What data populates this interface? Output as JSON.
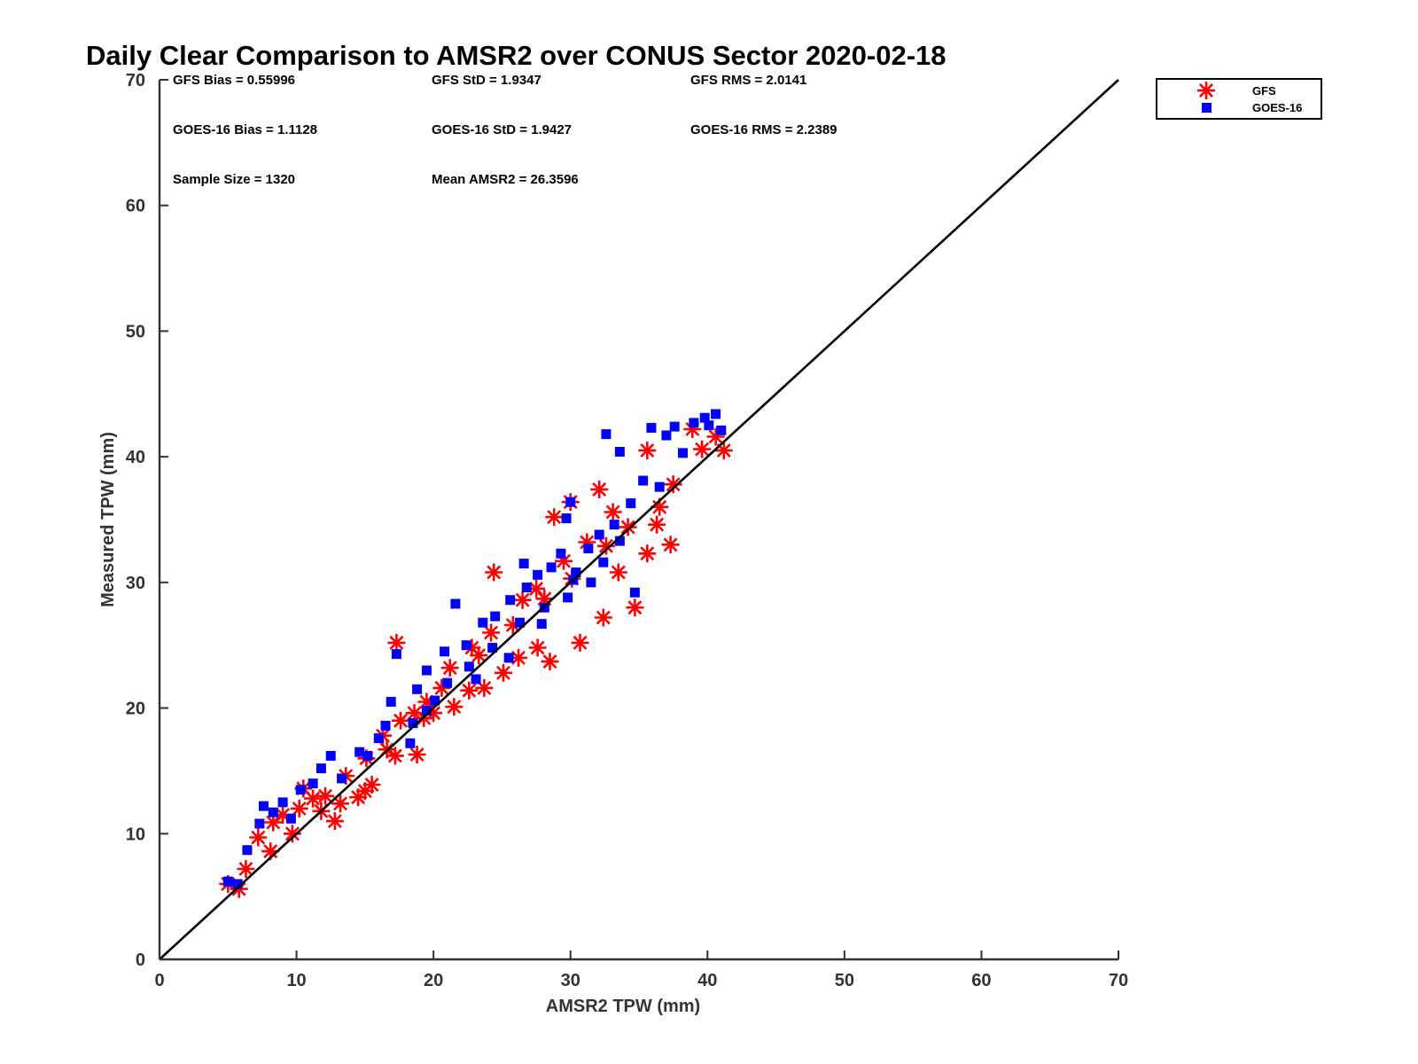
{
  "chart_data": {
    "type": "scatter",
    "title": "Daily Clear Comparison to AMSR2 over CONUS Sector 2020-02-18",
    "xlabel": "AMSR2 TPW (mm)",
    "ylabel": "Measured TPW (mm)",
    "xlim": [
      0,
      70
    ],
    "ylim": [
      0,
      70
    ],
    "xticks": [
      "0",
      "10",
      "20",
      "30",
      "40",
      "50",
      "60",
      "70"
    ],
    "yticks": [
      "0",
      "10",
      "20",
      "30",
      "40",
      "50",
      "60",
      "70"
    ],
    "grid": false,
    "legend_position": "top-right, outside plot",
    "reference_line": {
      "x": [
        0,
        70
      ],
      "y": [
        0,
        70
      ]
    },
    "stats": [
      [
        "GFS Bias = 0.55996",
        "GFS StD = 1.9347",
        "GFS RMS = 2.0141"
      ],
      [
        "GOES-16 Bias = 1.1128",
        "GOES-16 StD = 1.9427",
        "GOES-16 RMS = 2.2389"
      ],
      [
        "Sample Size = 1320",
        "Mean AMSR2 = 26.3596",
        ""
      ]
    ],
    "series": [
      {
        "name": "GFS",
        "marker": "asterisk",
        "color": "#ff0000",
        "points": [
          [
            5,
            6
          ],
          [
            5.8,
            5.6
          ],
          [
            6.3,
            7.2
          ],
          [
            7.2,
            9.7
          ],
          [
            8.1,
            8.6
          ],
          [
            8.3,
            10.9
          ],
          [
            9.7,
            10
          ],
          [
            10.2,
            12
          ],
          [
            10.5,
            13.6
          ],
          [
            11.2,
            12.8
          ],
          [
            12.1,
            13
          ],
          [
            12.8,
            11
          ],
          [
            13.2,
            12.4
          ],
          [
            13.6,
            14.6
          ],
          [
            14.5,
            12.9
          ],
          [
            15,
            13.4
          ],
          [
            15.5,
            13.9
          ],
          [
            16.6,
            16.7
          ],
          [
            17.2,
            16.2
          ],
          [
            17.6,
            19
          ],
          [
            18.8,
            16.3
          ],
          [
            17.3,
            25.2
          ],
          [
            19.3,
            19.2
          ],
          [
            20,
            19.6
          ],
          [
            21.5,
            20.1
          ],
          [
            22.6,
            21.4
          ],
          [
            23.7,
            21.6
          ],
          [
            25.1,
            22.8
          ],
          [
            26.2,
            24
          ],
          [
            27.6,
            24.8
          ],
          [
            28.5,
            23.7
          ],
          [
            30.7,
            25.2
          ],
          [
            32.4,
            27.2
          ],
          [
            33.5,
            30.8
          ],
          [
            34.7,
            28
          ],
          [
            35.6,
            32.3
          ],
          [
            36.3,
            34.6
          ],
          [
            37.3,
            33
          ],
          [
            37.5,
            37.8
          ],
          [
            38.9,
            42.2
          ],
          [
            39.6,
            40.6
          ],
          [
            40.6,
            41.6
          ],
          [
            41.2,
            40.5
          ],
          [
            24.4,
            30.8
          ],
          [
            28.8,
            35.2
          ],
          [
            30,
            36.4
          ],
          [
            32.1,
            37.4
          ],
          [
            35.6,
            40.5
          ],
          [
            26.5,
            28.6
          ],
          [
            27.5,
            29.5
          ],
          [
            29.5,
            31.7
          ],
          [
            31.2,
            33.2
          ],
          [
            33.1,
            35.6
          ],
          [
            21.2,
            23.2
          ],
          [
            22.8,
            24.8
          ],
          [
            24.2,
            26
          ],
          [
            20.6,
            21.6
          ],
          [
            23.3,
            24.2
          ],
          [
            25.8,
            26.6
          ],
          [
            28.1,
            28.7
          ],
          [
            30.1,
            30.3
          ],
          [
            32.6,
            32.9
          ],
          [
            34.2,
            34.4
          ],
          [
            36.5,
            36
          ],
          [
            19.5,
            20.5
          ],
          [
            18.6,
            19.6
          ],
          [
            16.3,
            17.8
          ],
          [
            15.1,
            16
          ],
          [
            11.8,
            11.8
          ],
          [
            9,
            11.5
          ]
        ]
      },
      {
        "name": "GOES-16",
        "marker": "square",
        "color": "#0000ff",
        "points": [
          [
            5,
            6.2
          ],
          [
            5.7,
            6
          ],
          [
            6.4,
            8.7
          ],
          [
            7.3,
            10.8
          ],
          [
            7.6,
            12.2
          ],
          [
            8.3,
            11.7
          ],
          [
            9,
            12.5
          ],
          [
            9.6,
            11.2
          ],
          [
            10.3,
            13.5
          ],
          [
            11.2,
            14
          ],
          [
            11.8,
            15.2
          ],
          [
            12.5,
            16.2
          ],
          [
            13.3,
            14.4
          ],
          [
            14.6,
            16.5
          ],
          [
            15.2,
            16.2
          ],
          [
            16.5,
            18.6
          ],
          [
            16.9,
            20.5
          ],
          [
            17.3,
            24.3
          ],
          [
            18.3,
            17.2
          ],
          [
            18.5,
            18.8
          ],
          [
            18.8,
            21.5
          ],
          [
            19.5,
            23
          ],
          [
            20.8,
            24.5
          ],
          [
            21.6,
            28.3
          ],
          [
            22.4,
            25
          ],
          [
            23.6,
            26.8
          ],
          [
            24.5,
            27.3
          ],
          [
            25.6,
            28.6
          ],
          [
            26.8,
            29.6
          ],
          [
            27.6,
            30.6
          ],
          [
            28.6,
            31.2
          ],
          [
            29.3,
            32.3
          ],
          [
            29.7,
            35.1
          ],
          [
            30,
            36.4
          ],
          [
            30.4,
            30.8
          ],
          [
            31.3,
            32.7
          ],
          [
            32.1,
            33.8
          ],
          [
            32.6,
            41.8
          ],
          [
            33.2,
            34.6
          ],
          [
            33.6,
            40.4
          ],
          [
            34.4,
            36.3
          ],
          [
            34.7,
            29.2
          ],
          [
            35.3,
            38.1
          ],
          [
            35.9,
            42.3
          ],
          [
            36.5,
            37.6
          ],
          [
            37,
            41.7
          ],
          [
            37.6,
            42.4
          ],
          [
            38.2,
            40.3
          ],
          [
            39,
            42.7
          ],
          [
            39.8,
            43.1
          ],
          [
            40.6,
            43.4
          ],
          [
            41,
            42.1
          ],
          [
            40.1,
            42.5
          ],
          [
            21,
            22
          ],
          [
            22.6,
            23.3
          ],
          [
            24.3,
            24.8
          ],
          [
            26.3,
            26.8
          ],
          [
            28.1,
            28
          ],
          [
            30.2,
            30.2
          ],
          [
            32.4,
            31.6
          ],
          [
            33.6,
            33.3
          ],
          [
            20.1,
            20.6
          ],
          [
            23.1,
            22.3
          ],
          [
            25.5,
            24
          ],
          [
            27.9,
            26.7
          ],
          [
            29.8,
            28.8
          ],
          [
            31.5,
            30
          ],
          [
            19.5,
            19.8
          ],
          [
            16,
            17.6
          ],
          [
            26.6,
            31.5
          ]
        ]
      }
    ]
  }
}
